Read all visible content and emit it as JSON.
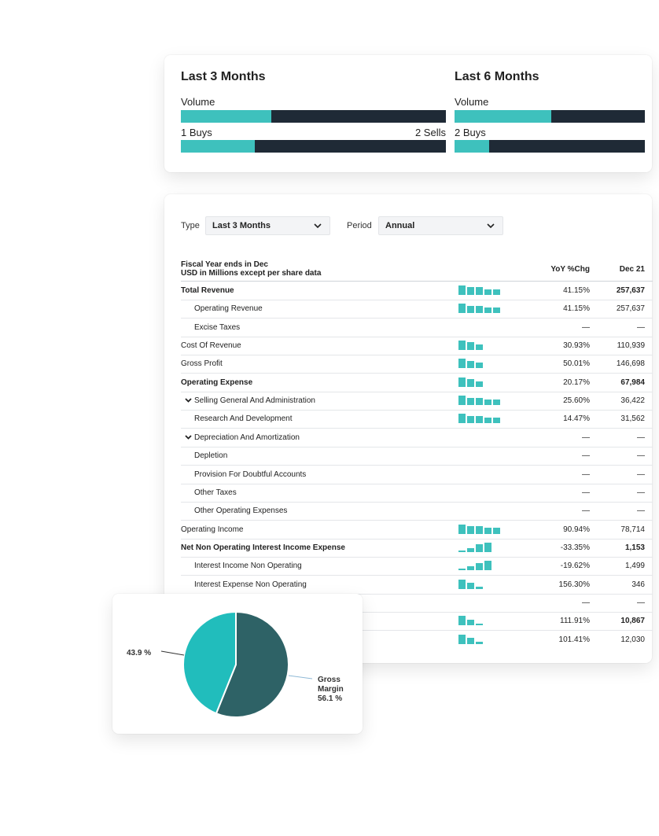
{
  "colors": {
    "teal": "#3ec1bd",
    "navy": "#1f2a36",
    "pie_teal": "#21bdbc",
    "pie_dark": "#2e6266"
  },
  "insider": {
    "columns": [
      {
        "title": "Last 3 Months",
        "volume_label": "Volume",
        "volume_fraction": 0.34,
        "buys_label": "1 Buys",
        "sells_label": "2 Sells",
        "buys_fraction": 0.28
      },
      {
        "title": "Last 6 Months",
        "volume_label": "Volume",
        "volume_fraction": 0.51,
        "buys_label": "2 Buys",
        "sells_label": "",
        "buys_fraction": 0.18
      }
    ]
  },
  "financials": {
    "type_label": "Type",
    "type_value": "Last 3 Months",
    "period_label": "Period",
    "period_value": "Annual",
    "header_line1": "Fiscal Year ends in Dec",
    "header_line2": "USD in Millions except per share data",
    "col_yoy": "YoY %Chg",
    "col_dec": "Dec 21",
    "rows": [
      {
        "label": "Total Revenue",
        "yoy": "41.15%",
        "dec": "257,637",
        "bold": true,
        "indent": false,
        "expandable": false,
        "spark": [
          5,
          4,
          4,
          3,
          3
        ]
      },
      {
        "label": "Operating Revenue",
        "yoy": "41.15%",
        "dec": "257,637",
        "bold": false,
        "indent": true,
        "expandable": false,
        "spark": [
          5,
          4,
          4,
          3,
          3
        ]
      },
      {
        "label": "Excise Taxes",
        "yoy": "—",
        "dec": "—",
        "bold": false,
        "indent": true,
        "expandable": false,
        "spark": []
      },
      {
        "label": "Cost Of Revenue",
        "yoy": "30.93%",
        "dec": "110,939",
        "bold": false,
        "indent": false,
        "expandable": false,
        "spark": [
          5,
          4,
          3
        ]
      },
      {
        "label": "Gross Profit",
        "yoy": "50.01%",
        "dec": "146,698",
        "bold": false,
        "indent": false,
        "expandable": false,
        "spark": [
          5,
          4,
          3
        ]
      },
      {
        "label": "Operating Expense",
        "yoy": "20.17%",
        "dec": "67,984",
        "bold": true,
        "indent": false,
        "expandable": false,
        "spark": [
          5,
          4,
          3
        ]
      },
      {
        "label": "Selling General And Administration",
        "yoy": "25.60%",
        "dec": "36,422",
        "bold": false,
        "indent": true,
        "expandable": true,
        "spark": [
          5,
          4,
          4,
          3,
          3
        ]
      },
      {
        "label": "Research And Development",
        "yoy": "14.47%",
        "dec": "31,562",
        "bold": false,
        "indent": true,
        "expandable": false,
        "spark": [
          5,
          4,
          4,
          3,
          3
        ]
      },
      {
        "label": "Depreciation And Amortization",
        "yoy": "—",
        "dec": "—",
        "bold": false,
        "indent": true,
        "expandable": true,
        "spark": []
      },
      {
        "label": "Depletion",
        "yoy": "—",
        "dec": "—",
        "bold": false,
        "indent": true,
        "expandable": false,
        "spark": []
      },
      {
        "label": "Provision For Doubtful Accounts",
        "yoy": "—",
        "dec": "—",
        "bold": false,
        "indent": true,
        "expandable": false,
        "spark": []
      },
      {
        "label": "Other Taxes",
        "yoy": "—",
        "dec": "—",
        "bold": false,
        "indent": true,
        "expandable": false,
        "spark": []
      },
      {
        "label": "Other Operating Expenses",
        "yoy": "—",
        "dec": "—",
        "bold": false,
        "indent": true,
        "expandable": false,
        "spark": []
      },
      {
        "label": "Operating Income",
        "yoy": "90.94%",
        "dec": "78,714",
        "bold": false,
        "indent": false,
        "expandable": false,
        "spark": [
          5,
          4,
          4,
          3,
          3
        ]
      },
      {
        "label": "Net Non Operating Interest Income Expense",
        "yoy": "-33.35%",
        "dec": "1,153",
        "bold": true,
        "indent": false,
        "expandable": false,
        "spark": [
          1,
          2,
          4,
          5
        ]
      },
      {
        "label": "Interest Income Non Operating",
        "yoy": "-19.62%",
        "dec": "1,499",
        "bold": false,
        "indent": true,
        "expandable": false,
        "spark": [
          1,
          2,
          4,
          5
        ]
      },
      {
        "label": "Interest Expense Non Operating",
        "yoy": "156.30%",
        "dec": "346",
        "bold": false,
        "indent": true,
        "expandable": false,
        "spark": [
          5,
          3,
          1
        ]
      },
      {
        "label": "",
        "yoy": "—",
        "dec": "—",
        "bold": false,
        "indent": true,
        "expandable": false,
        "spark": []
      },
      {
        "label": "",
        "yoy": "111.91%",
        "dec": "10,867",
        "bold": true,
        "indent": false,
        "expandable": false,
        "spark": [
          5,
          3,
          1
        ]
      },
      {
        "label": "",
        "yoy": "101.41%",
        "dec": "12,030",
        "bold": false,
        "indent": false,
        "expandable": false,
        "spark": [
          5,
          3,
          1
        ]
      }
    ]
  },
  "chart_data": {
    "type": "pie",
    "slices": [
      {
        "label": "Gross Margin",
        "value": 56.1,
        "display": "56.1 %",
        "color": "#2e6266"
      },
      {
        "label": "",
        "value": 43.9,
        "display": "43.9 %",
        "color": "#21bdbc"
      }
    ],
    "label_lines": [
      "Gross",
      "Margin",
      "56.1 %"
    ],
    "other_label": "43.9 %"
  }
}
